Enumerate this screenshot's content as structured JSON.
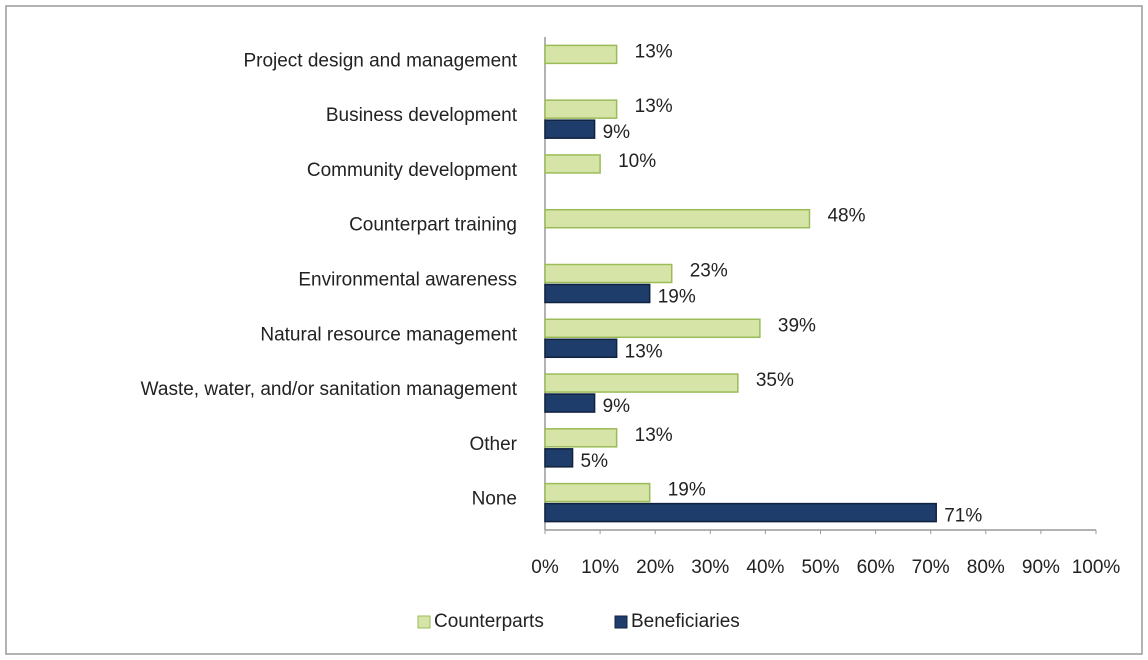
{
  "chart_data": {
    "type": "bar",
    "orientation": "horizontal",
    "categories": [
      "Project design and management",
      "Business development",
      "Community development",
      "Counterpart training",
      "Environmental awareness",
      "Natural resource management",
      "Waste, water, and/or sanitation management",
      "Other",
      "None"
    ],
    "series": [
      {
        "name": "Counterparts",
        "color": "#d7e4a8",
        "values": [
          13,
          13,
          10,
          48,
          23,
          39,
          35,
          13,
          19
        ],
        "value_labels": [
          "13%",
          "13%",
          "10%",
          "48%",
          "23%",
          "39%",
          "35%",
          "13%",
          "19%"
        ]
      },
      {
        "name": "Beneficiaries",
        "color": "#1f3d6b",
        "values": [
          null,
          9,
          null,
          null,
          19,
          13,
          9,
          5,
          71
        ],
        "value_labels": [
          null,
          "9%",
          null,
          null,
          "19%",
          "13%",
          "9%",
          "5%",
          "71%"
        ]
      }
    ],
    "xlim": [
      0,
      100
    ],
    "xticks": [
      {
        "value": 0,
        "label": "0%"
      },
      {
        "value": 10,
        "label": "10%"
      },
      {
        "value": 20,
        "label": "20%"
      },
      {
        "value": 30,
        "label": "30%"
      },
      {
        "value": 40,
        "label": "40%"
      },
      {
        "value": 50,
        "label": "50%"
      },
      {
        "value": 60,
        "label": "60%"
      },
      {
        "value": 70,
        "label": "70%"
      },
      {
        "value": 80,
        "label": "80%"
      },
      {
        "value": 90,
        "label": "90%"
      },
      {
        "value": 100,
        "label": "100%"
      }
    ],
    "grid": false,
    "legend": "bottom"
  }
}
